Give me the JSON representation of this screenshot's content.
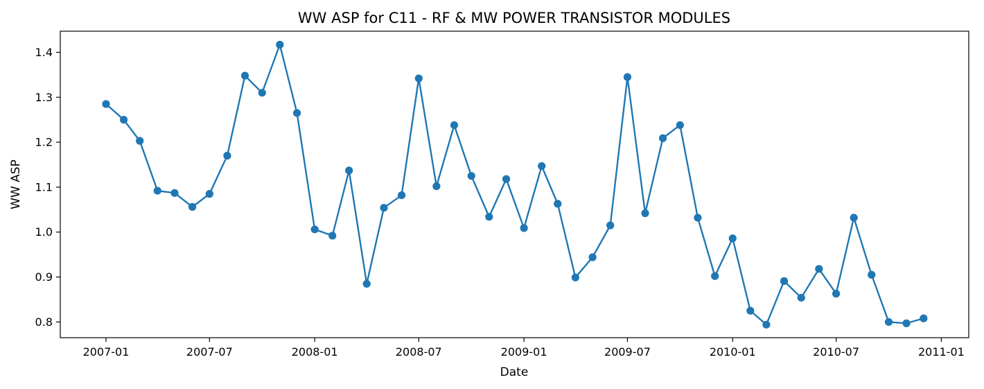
{
  "chart_data": {
    "type": "line",
    "title": "WW ASP for C11 - RF & MW POWER TRANSISTOR MODULES",
    "xlabel": "Date",
    "ylabel": "WW ASP",
    "x_axis_type": "date",
    "xlim": [
      "2006-10-13",
      "2011-02-18"
    ],
    "ylim": [
      0.765,
      1.447
    ],
    "x_ticks": [
      "2007-01",
      "2007-07",
      "2008-01",
      "2008-07",
      "2009-01",
      "2009-07",
      "2010-01",
      "2010-07",
      "2011-01"
    ],
    "y_ticks": [
      "0.8",
      "0.9",
      "1.0",
      "1.1",
      "1.2",
      "1.3",
      "1.4"
    ],
    "grid": false,
    "legend": "none",
    "marker": "circle",
    "color": "#1f77b4",
    "x": [
      "2007-01-01",
      "2007-02-01",
      "2007-03-01",
      "2007-04-01",
      "2007-05-01",
      "2007-06-01",
      "2007-07-01",
      "2007-08-01",
      "2007-09-01",
      "2007-10-01",
      "2007-11-01",
      "2007-12-01",
      "2008-01-01",
      "2008-02-01",
      "2008-03-01",
      "2008-04-01",
      "2008-05-01",
      "2008-06-01",
      "2008-07-01",
      "2008-08-01",
      "2008-09-01",
      "2008-10-01",
      "2008-11-01",
      "2008-12-01",
      "2009-01-01",
      "2009-02-01",
      "2009-03-01",
      "2009-04-01",
      "2009-05-01",
      "2009-06-01",
      "2009-07-01",
      "2009-08-01",
      "2009-09-01",
      "2009-10-01",
      "2009-11-01",
      "2009-12-01",
      "2010-01-01",
      "2010-02-01",
      "2010-03-01",
      "2010-04-01",
      "2010-05-01",
      "2010-06-01",
      "2010-07-01",
      "2010-08-01",
      "2010-09-01",
      "2010-10-01",
      "2010-11-01",
      "2010-12-01"
    ],
    "y": [
      1.285,
      1.25,
      1.203,
      1.092,
      1.087,
      1.056,
      1.085,
      1.17,
      1.348,
      1.31,
      1.417,
      1.265,
      1.006,
      0.992,
      1.137,
      0.885,
      1.054,
      1.082,
      1.342,
      1.102,
      1.238,
      1.125,
      1.034,
      1.118,
      1.009,
      1.147,
      1.063,
      0.899,
      0.944,
      1.015,
      1.345,
      1.042,
      1.209,
      1.238,
      1.032,
      0.902,
      0.986,
      0.825,
      0.794,
      0.891,
      0.854,
      0.918,
      0.863,
      1.032,
      0.905,
      0.8,
      0.797,
      0.808
    ]
  }
}
